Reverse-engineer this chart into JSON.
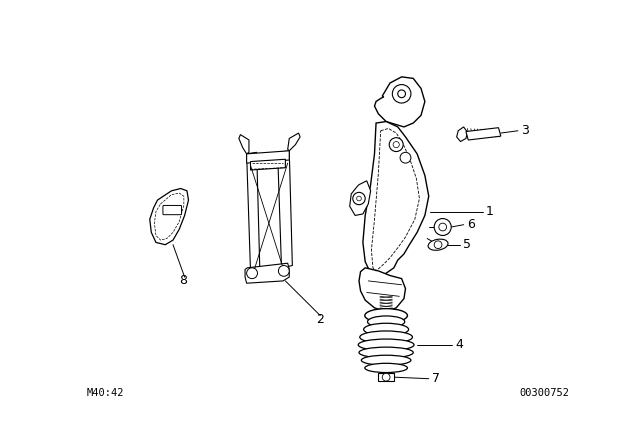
{
  "background_color": "#ffffff",
  "line_color": "#000000",
  "figure_width": 6.4,
  "figure_height": 4.48,
  "dpi": 100,
  "bottom_left_text": "M40:42",
  "bottom_right_text": "00300752"
}
